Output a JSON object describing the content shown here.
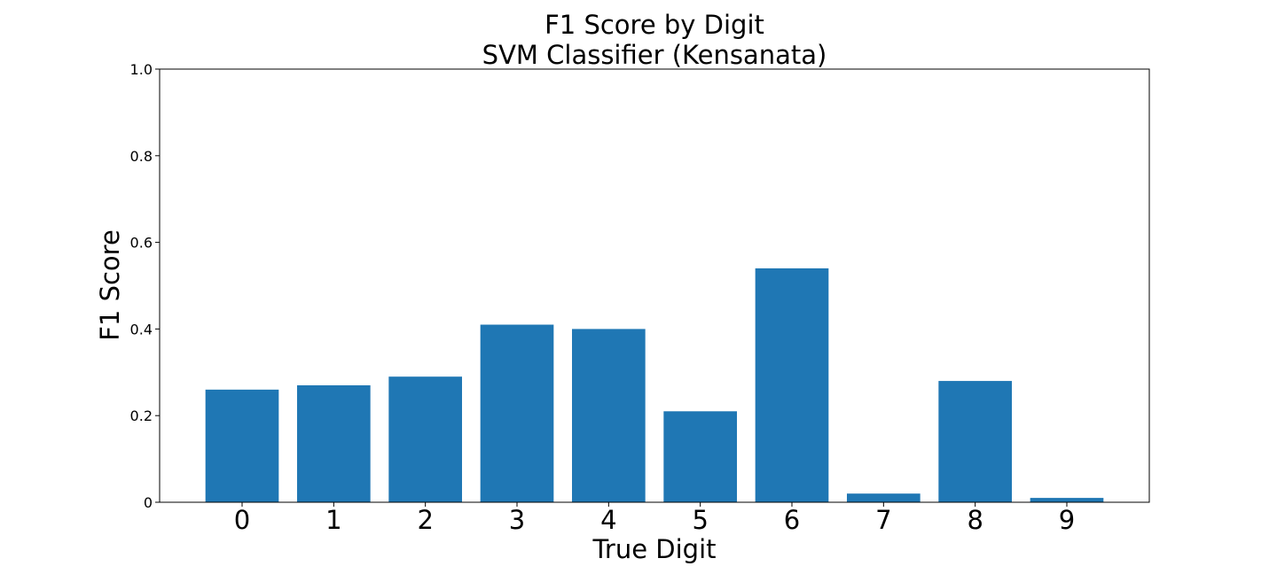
{
  "chart_data": {
    "type": "bar",
    "title": "F1 Score by Digit",
    "subtitle": "SVM Classifier (Kensanata)",
    "xlabel": "True Digit",
    "ylabel": "F1 Score",
    "categories": [
      "0",
      "1",
      "2",
      "3",
      "4",
      "5",
      "6",
      "7",
      "8",
      "9"
    ],
    "values": [
      0.26,
      0.27,
      0.29,
      0.41,
      0.4,
      0.21,
      0.54,
      0.02,
      0.28,
      0.01
    ],
    "ylim": [
      0,
      1.0
    ],
    "yticks": [
      0,
      0.2,
      0.4,
      0.6,
      0.8,
      1.0
    ],
    "ytick_labels": [
      "0",
      "0.2",
      "0.4",
      "0.6",
      "0.8",
      "1.0"
    ],
    "bar_color": "#1f77b4",
    "grid": false,
    "legend": "none"
  }
}
